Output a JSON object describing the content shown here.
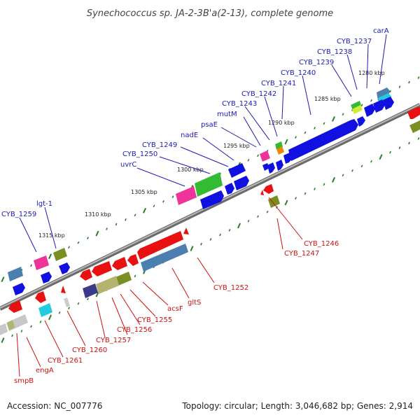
{
  "title": "Synechococcus sp. JA-2-3B'a(2-13), complete genome",
  "footer": {
    "accession": "Accession: NC_007776",
    "topology": "Topology: circular; Length: 3,046,682 bp; Genes: 2,914"
  },
  "kbp_ticks": [
    "1280 kbp",
    "1285 kbp",
    "1290 kbp",
    "1295 kbp",
    "1300 kbp",
    "1305 kbp",
    "1310 kbp",
    "1315 kbp"
  ],
  "top_labels": [
    "carA",
    "CYB_1237",
    "CYB_1238",
    "CYB_1239",
    "CYB_1240",
    "CYB_1241",
    "CYB_1242",
    "CYB_1243",
    "mutM",
    "psaE",
    "nadE",
    "CYB_1249",
    "CYB_1250",
    "uvrC",
    "lgt-1",
    "CYB_1259"
  ],
  "bottom_labels": [
    "CYB_1246",
    "CYB_1247",
    "CYB_1252",
    "gltS",
    "acsF",
    "CYB_1255",
    "CYB_1256",
    "CYB_1257",
    "CYB_1260",
    "CYB_1261",
    "engA",
    "smpB"
  ],
  "colors": {
    "forward_label": "#1a1ab4",
    "reverse_label": "#cc1111",
    "forward_gene": "#1010e0",
    "reverse_gene": "#e81010",
    "pink": "#ee3399",
    "green": "#33bb33",
    "olive": "#7a8f22",
    "steel": "#4a7fb0",
    "cyan": "#22ccdd",
    "khaki": "#b4b470",
    "navy": "#3a3a88",
    "orange": "#ee8800",
    "backbone": "#888888",
    "tick": "#2e7d2e"
  }
}
